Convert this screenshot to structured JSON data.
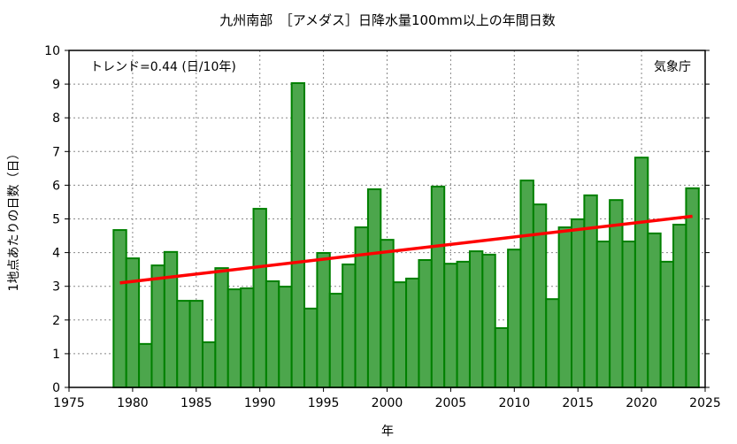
{
  "chart_data": {
    "type": "bar",
    "title": "九州南部　［アメダス］日降水量100mm以上の年間日数",
    "xlabel": "年",
    "ylabel": "1地点あたりの日数（日）",
    "xlim": [
      1975,
      2025
    ],
    "ylim": [
      0,
      10
    ],
    "xticks": [
      1975,
      1980,
      1985,
      1990,
      1995,
      2000,
      2005,
      2010,
      2015,
      2020,
      2025
    ],
    "yticks": [
      0,
      1,
      2,
      3,
      4,
      5,
      6,
      7,
      8,
      9,
      10
    ],
    "grid": true,
    "trend_label": "トレンド=0.44 (日/10年)",
    "source_label": "気象庁",
    "x": [
      1979,
      1980,
      1981,
      1982,
      1983,
      1984,
      1985,
      1986,
      1987,
      1988,
      1989,
      1990,
      1991,
      1992,
      1993,
      1994,
      1995,
      1996,
      1997,
      1998,
      1999,
      2000,
      2001,
      2002,
      2003,
      2004,
      2005,
      2006,
      2007,
      2008,
      2009,
      2010,
      2011,
      2012,
      2013,
      2014,
      2015,
      2016,
      2017,
      2018,
      2019,
      2020,
      2021,
      2022,
      2023,
      2024
    ],
    "values": [
      4.67,
      3.83,
      1.29,
      3.62,
      4.02,
      2.57,
      2.57,
      1.34,
      3.54,
      2.91,
      2.94,
      5.3,
      3.15,
      2.99,
      9.03,
      2.34,
      3.99,
      2.78,
      3.65,
      4.75,
      5.88,
      4.38,
      3.12,
      3.23,
      3.78,
      5.96,
      3.67,
      3.73,
      4.04,
      3.94,
      1.76,
      4.09,
      6.14,
      5.43,
      2.62,
      4.75,
      4.99,
      5.7,
      4.33,
      5.56,
      4.33,
      6.82,
      4.57,
      3.73,
      4.83,
      5.91
    ],
    "trend": {
      "x": [
        1979,
        2024
      ],
      "y": [
        3.1,
        5.08
      ]
    },
    "colors": {
      "bar_fill": "#4ca64c",
      "bar_edge": "#008000",
      "trend": "#ff0000"
    }
  }
}
